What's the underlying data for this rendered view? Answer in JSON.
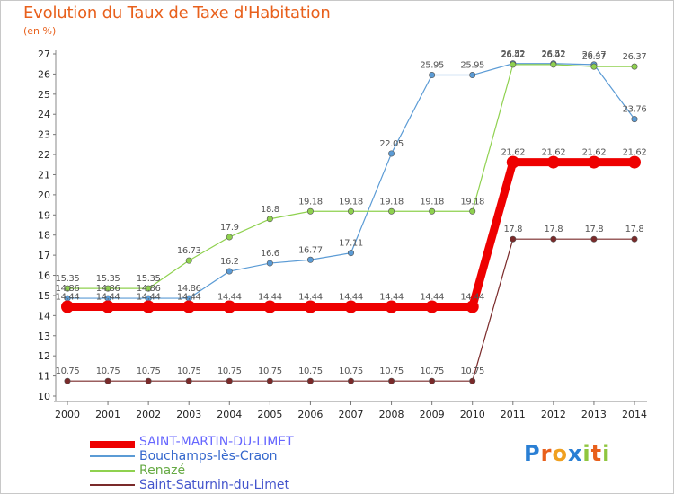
{
  "chart_data": {
    "type": "line",
    "title": "Evolution du Taux de Taxe d'Habitation",
    "ylabel": "(en %)",
    "x": [
      "2000",
      "2001",
      "2002",
      "2003",
      "2004",
      "2005",
      "2006",
      "2007",
      "2008",
      "2009",
      "2010",
      "2011",
      "2012",
      "2013",
      "2014"
    ],
    "ylim": [
      10,
      27
    ],
    "yticks": [
      10,
      11,
      12,
      13,
      14,
      15,
      16,
      17,
      18,
      19,
      20,
      21,
      22,
      23,
      24,
      25,
      26,
      27
    ],
    "grid": false,
    "legend_position": "bottom-left",
    "series": [
      {
        "name": "SAINT-MARTIN-DU-LIMET",
        "color": "#ee0000",
        "line_width": 9,
        "values": [
          14.44,
          14.44,
          14.44,
          14.44,
          14.44,
          14.44,
          14.44,
          14.44,
          14.44,
          14.44,
          14.44,
          21.62,
          21.62,
          21.62,
          21.62
        ],
        "labels": [
          "14.44",
          "14.44",
          "14.44",
          "14.44",
          "14.44",
          "14.44",
          "14.44",
          "14.44",
          "14.44",
          "14.44",
          "14.44",
          "21.62",
          "21.62",
          "21.62",
          "21.62"
        ]
      },
      {
        "name": "Bouchamps-lès-Craon",
        "color": "#5b9bd5",
        "line_width": 1.2,
        "values": [
          14.86,
          14.86,
          14.86,
          14.86,
          16.2,
          16.6,
          16.77,
          17.11,
          22.05,
          25.95,
          25.95,
          26.52,
          26.52,
          26.47,
          23.76
        ],
        "labels": [
          "14.86",
          "14.86",
          "14.86",
          "14.86",
          "16.2",
          "16.6",
          "16.77",
          "17.11",
          "22.05",
          "25.95",
          "25.95",
          "26.52",
          "26.52",
          "26.47",
          "23.76"
        ]
      },
      {
        "name": "Renazé",
        "color": "#8fd14f",
        "line_width": 1.2,
        "values": [
          15.35,
          15.35,
          15.35,
          16.73,
          17.9,
          18.8,
          19.18,
          19.18,
          19.18,
          19.18,
          19.18,
          26.47,
          26.47,
          26.37,
          26.37
        ],
        "labels": [
          "15.35",
          "15.35",
          "15.35",
          "16.73",
          "17.9",
          "18.8",
          "19.18",
          "19.18",
          "19.18",
          "19.18",
          "19.18",
          "26.47",
          "26.47",
          "26.37",
          "26.37"
        ]
      },
      {
        "name": "Saint-Saturnin-du-Limet",
        "color": "#7a2a2a",
        "line_width": 1.2,
        "values": [
          10.75,
          10.75,
          10.75,
          10.75,
          10.75,
          10.75,
          10.75,
          10.75,
          10.75,
          10.75,
          10.75,
          17.8,
          17.8,
          17.8,
          17.8
        ],
        "labels": [
          "10.75",
          "10.75",
          "10.75",
          "10.75",
          "10.75",
          "10.75",
          "10.75",
          "10.75",
          "10.75",
          "10.75",
          "10.75",
          "17.8",
          "17.8",
          "17.8",
          "17.8"
        ]
      }
    ]
  },
  "legend": {
    "label_colors": [
      "#6666ff",
      "#3366cc",
      "#66aa44",
      "#4455cc"
    ]
  },
  "logo": {
    "letters": [
      "P",
      "r",
      "o",
      "x",
      "i",
      "t",
      "i"
    ],
    "colors": [
      "#2a7fd4",
      "#e8601c",
      "#f0a020",
      "#2a7fd4",
      "#8fc63f",
      "#e8601c",
      "#8fc63f"
    ]
  }
}
